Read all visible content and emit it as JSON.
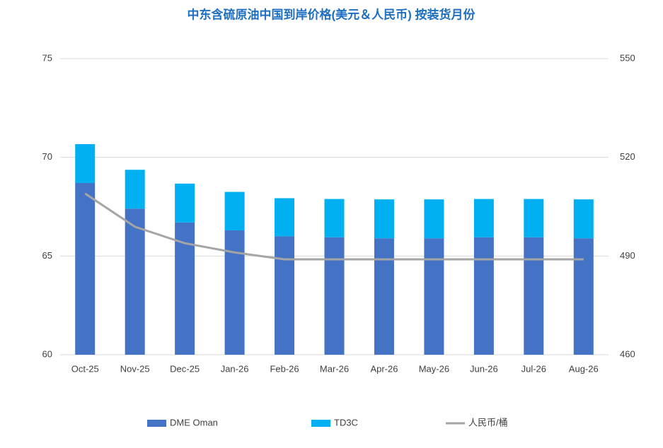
{
  "chart_data": {
    "type": "bar",
    "stacked": true,
    "title": "中东含硫原油中国到岸价格(美元＆人民币) 按装货月份",
    "categories": [
      "Oct-25",
      "Nov-25",
      "Dec-25",
      "Jan-26",
      "Feb-26",
      "Mar-26",
      "Apr-26",
      "May-26",
      "Jun-26",
      "Jul-26",
      "Aug-26"
    ],
    "series": [
      {
        "name": "DME Oman",
        "color": "#4472c4",
        "values": [
          68.7,
          67.4,
          66.7,
          66.3,
          66.0,
          65.95,
          65.9,
          65.9,
          65.95,
          65.95,
          65.9
        ]
      },
      {
        "name": "TD3C",
        "color": "#00b0f0",
        "values": [
          1.97,
          1.97,
          1.97,
          1.95,
          1.93,
          1.94,
          1.97,
          1.97,
          1.94,
          1.94,
          1.97
        ]
      },
      {
        "name": "人民币/桶",
        "color": "#a5a5a5",
        "axis": "y2",
        "line": true,
        "values": [
          509,
          498.9,
          493.9,
          491.1,
          489,
          489,
          489,
          489,
          489,
          489,
          489
        ]
      }
    ],
    "ylim": [
      60,
      75
    ],
    "yticks": [
      60,
      65,
      70,
      75
    ],
    "y2lim": [
      460,
      550
    ],
    "y2ticks": [
      460,
      490,
      520,
      550
    ],
    "grid": true,
    "legend": "bottom"
  }
}
